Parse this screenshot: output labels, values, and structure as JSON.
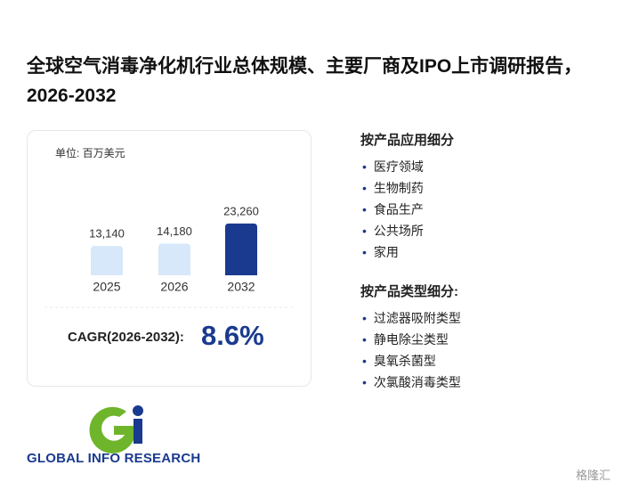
{
  "title": "全球空气消毒净化机行业总体规模、主要厂商及IPO上市调研报告，2026-2032",
  "chart_data": {
    "type": "bar",
    "unit_label": "单位: 百万美元",
    "categories": [
      "2025",
      "2026",
      "2032"
    ],
    "values": [
      13140,
      14180,
      23260
    ],
    "value_labels": [
      "13,140",
      "14,180",
      "23,260"
    ],
    "colors": [
      "#d6e8fa",
      "#d6e8fa",
      "#1a3a8f"
    ]
  },
  "cagr": {
    "label": "CAGR(2026-2032):",
    "value": "8.6%"
  },
  "segments": [
    {
      "title": "按产品应用细分",
      "items": [
        "医疗领域",
        "生物制药",
        "食品生产",
        "公共场所",
        "家用"
      ]
    },
    {
      "title": "按产品类型细分:",
      "items": [
        "过滤器吸附类型",
        "静电除尘类型",
        "臭氧杀菌型",
        "次氯酸消毒类型"
      ]
    }
  ],
  "logo": "GLOBAL INFO RESEARCH",
  "watermark": "格隆汇"
}
